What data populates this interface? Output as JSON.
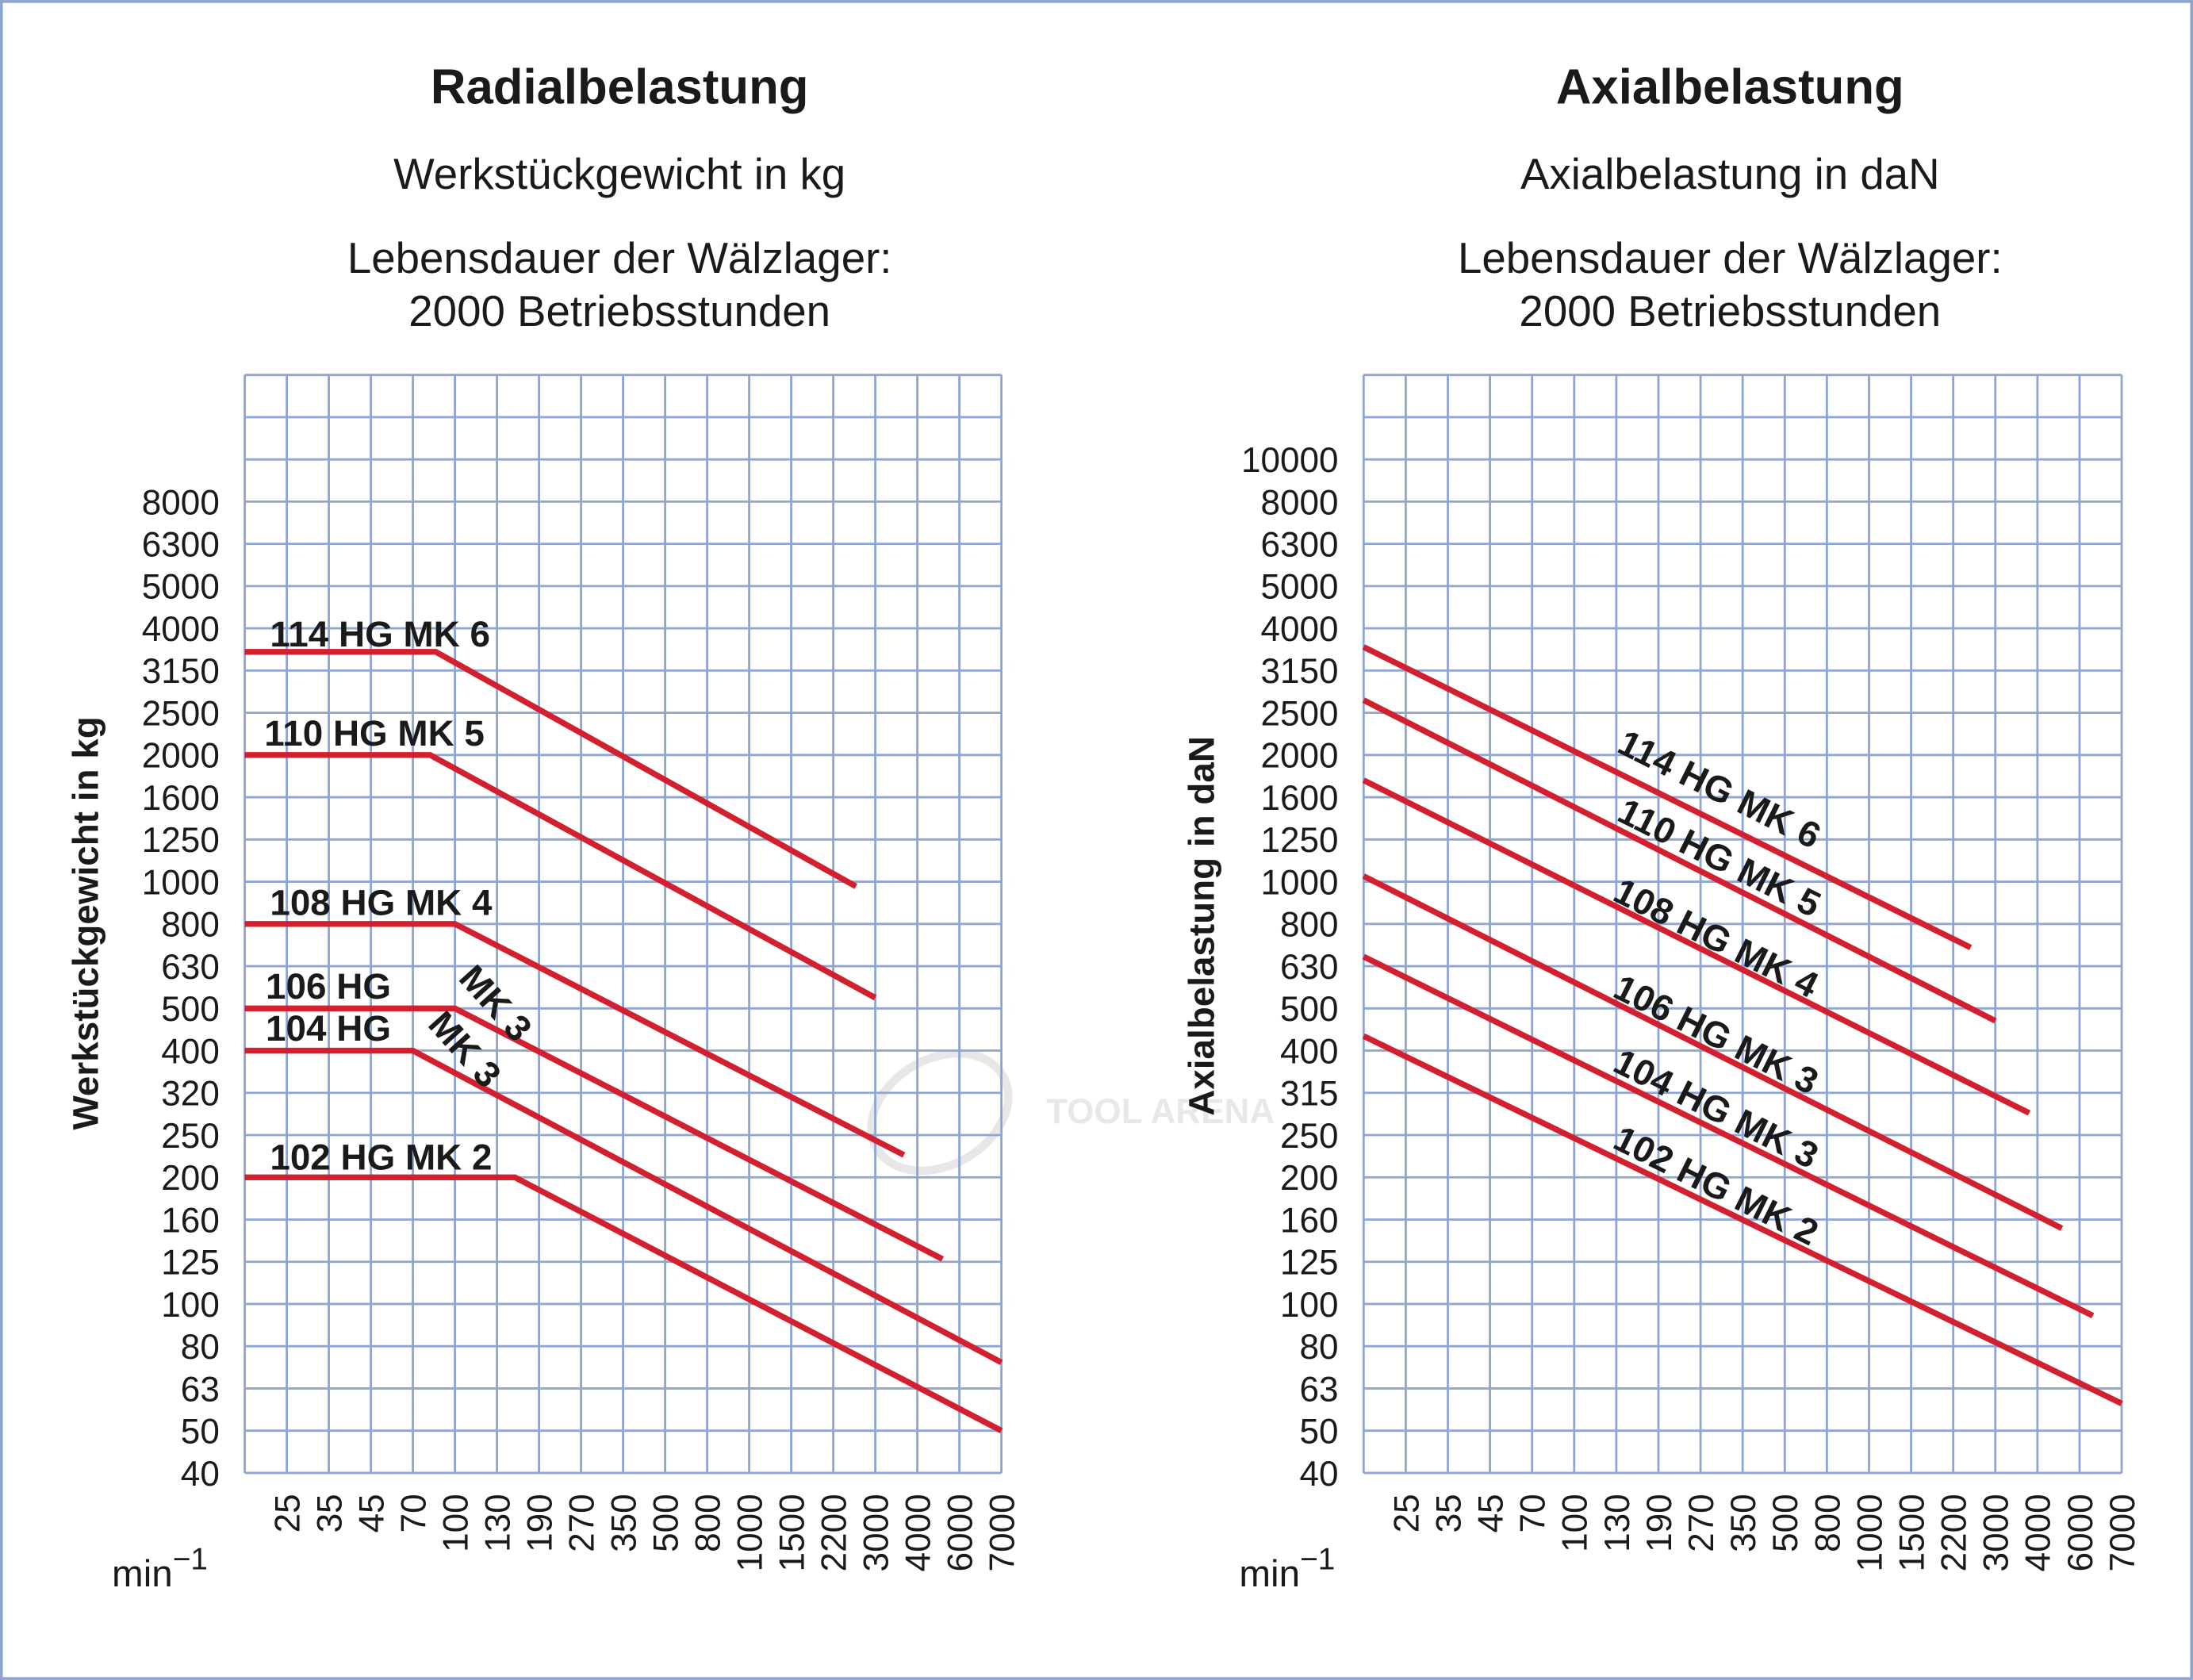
{
  "colors": {
    "grid": "#8fa5d4",
    "curve": "#d3202f",
    "frame": "#8aa3cf",
    "text": "#1a1a1a"
  },
  "watermark": "TOOL ARENA",
  "x_unit": {
    "base": "min",
    "exponent": "−1"
  },
  "chart_data": [
    {
      "type": "line",
      "title": "Radialbelastung",
      "subtitle": "Werkstückgewicht in kg",
      "note_line1": "Lebensdauer der Wälzlager:",
      "note_line2": "2000 Betriebsstunden",
      "xlabel": "min−1",
      "ylabel": "Werkstückgewicht in kg",
      "grid": true,
      "x_scale": "categorical-log",
      "x_edge": 20,
      "x_ticks": [
        "25",
        "35",
        "45",
        "70",
        "100",
        "130",
        "190",
        "270",
        "350",
        "500",
        "800",
        "1000",
        "1500",
        "2200",
        "3000",
        "4000",
        "6000",
        "7000"
      ],
      "y_ticks": [
        "40",
        "50",
        "63",
        "80",
        "100",
        "125",
        "160",
        "200",
        "250",
        "320",
        "400",
        "500",
        "630",
        "800",
        "1000",
        "1250",
        "1600",
        "2000",
        "2500",
        "3150",
        "4000",
        "5000",
        "6300",
        "8000"
      ],
      "series": [
        {
          "name": "114 HG MK 6",
          "label": "114 HG MK 6",
          "points": [
            [
              20,
              3500
            ],
            [
              85,
              3500
            ],
            [
              2600,
              975
            ]
          ]
        },
        {
          "name": "110 HG MK 5",
          "label": "110 HG MK 5",
          "points": [
            [
              20,
              2000
            ],
            [
              81,
              2000
            ],
            [
              3000,
              530
            ]
          ]
        },
        {
          "name": "108 HG MK 4",
          "label": "108 HG MK 4",
          "points": [
            [
              20,
              800
            ],
            [
              100,
              800
            ],
            [
              3650,
              225
            ]
          ]
        },
        {
          "name": "106 HG MK 3",
          "label": "106 HG",
          "label2": "MK 3",
          "points": [
            [
              20,
              500
            ],
            [
              100,
              500
            ],
            [
              5100,
              127
            ]
          ]
        },
        {
          "name": "104 HG MK 3",
          "label": "104 HG",
          "label2": "MK 3",
          "points": [
            [
              20,
              400
            ],
            [
              70,
              400
            ],
            [
              7000,
              73
            ]
          ]
        },
        {
          "name": "102 HG MK 2",
          "label": "102 HG MK 2",
          "points": [
            [
              20,
              200
            ],
            [
              153,
              200
            ],
            [
              7000,
              50
            ]
          ]
        }
      ]
    },
    {
      "type": "line",
      "title": "Axialbelastung",
      "subtitle": "Axialbelastung in daN",
      "note_line1": "Lebensdauer der Wälzlager:",
      "note_line2": "2000 Betriebsstunden",
      "xlabel": "min−1",
      "ylabel": "Axialbelastung in daN",
      "grid": true,
      "x_scale": "categorical-log",
      "x_edge": 20,
      "x_ticks": [
        "25",
        "35",
        "45",
        "70",
        "100",
        "130",
        "190",
        "270",
        "350",
        "500",
        "800",
        "1000",
        "1500",
        "2200",
        "3000",
        "4000",
        "6000",
        "7000"
      ],
      "y_ticks": [
        "40",
        "50",
        "63",
        "80",
        "100",
        "125",
        "160",
        "200",
        "250",
        "315",
        "400",
        "500",
        "630",
        "800",
        "1000",
        "1250",
        "1600",
        "2000",
        "2500",
        "3150",
        "4000",
        "5000",
        "6300",
        "8000",
        "10000"
      ],
      "series": [
        {
          "name": "114 HG MK 6",
          "label": "114 HG MK 6",
          "points": [
            [
              20,
              3600
            ],
            [
              2500,
              700
            ]
          ]
        },
        {
          "name": "110 HG MK 5",
          "label": "110 HG MK 5",
          "points": [
            [
              20,
              2680
            ],
            [
              3000,
              468
            ]
          ]
        },
        {
          "name": "108 HG MK 4",
          "label": "108 HG MK 4",
          "points": [
            [
              20,
              1750
            ],
            [
              3780,
              282
            ]
          ]
        },
        {
          "name": "106 HG MK 3",
          "label": "106 HG MK 3",
          "points": [
            [
              20,
              1030
            ],
            [
              5060,
              152
            ]
          ]
        },
        {
          "name": "104 HG MK 3",
          "label": "104 HG MK 3",
          "points": [
            [
              20,
              665
            ],
            [
              6300,
              94
            ]
          ]
        },
        {
          "name": "102 HG MK 2",
          "label": "102 HG MK 2",
          "points": [
            [
              20,
              432
            ],
            [
              7000,
              58
            ]
          ]
        }
      ]
    }
  ]
}
